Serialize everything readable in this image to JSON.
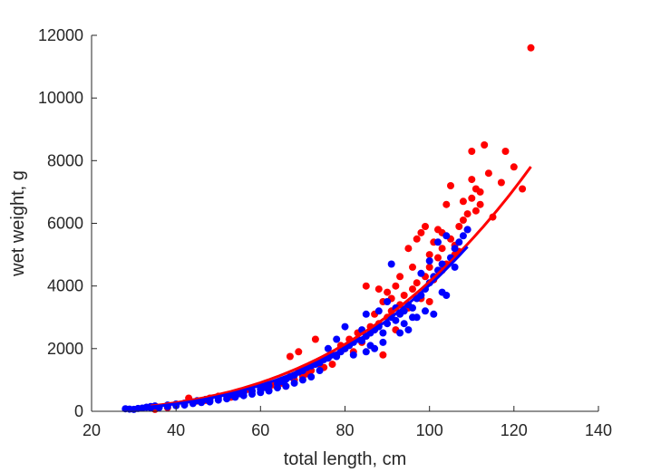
{
  "chart_data": {
    "type": "scatter",
    "title": "",
    "xlabel": "total length, cm",
    "ylabel": "wet weight, g",
    "xlim": [
      20,
      140
    ],
    "ylim": [
      0,
      12000
    ],
    "xticks": [
      "20",
      "40",
      "60",
      "80",
      "100",
      "120",
      "140"
    ],
    "yticks": [
      "0",
      "2000",
      "4000",
      "6000",
      "8000",
      "10000",
      "12000"
    ],
    "grid": false,
    "legend": "none",
    "series": [
      {
        "color": "#ff0000",
        "points": [
          [
            35,
            60
          ],
          [
            38,
            120
          ],
          [
            40,
            200
          ],
          [
            43,
            420
          ],
          [
            45,
            330
          ],
          [
            48,
            420
          ],
          [
            50,
            480
          ],
          [
            53,
            450
          ],
          [
            55,
            600
          ],
          [
            58,
            650
          ],
          [
            60,
            800
          ],
          [
            62,
            750
          ],
          [
            65,
            900
          ],
          [
            66,
            800
          ],
          [
            68,
            1000
          ],
          [
            70,
            1100
          ],
          [
            72,
            1300
          ],
          [
            75,
            1400
          ],
          [
            77,
            1500
          ],
          [
            67,
            1750
          ],
          [
            69,
            1900
          ],
          [
            73,
            2300
          ],
          [
            78,
            1800
          ],
          [
            80,
            2000
          ],
          [
            82,
            1900
          ],
          [
            84,
            2200
          ],
          [
            85,
            2400
          ],
          [
            87,
            2600
          ],
          [
            88,
            2800
          ],
          [
            89,
            1800
          ],
          [
            90,
            3000
          ],
          [
            91,
            3200
          ],
          [
            92,
            2600
          ],
          [
            93,
            3400
          ],
          [
            94,
            3700
          ],
          [
            95,
            3300
          ],
          [
            96,
            3900
          ],
          [
            97,
            4100
          ],
          [
            98,
            3600
          ],
          [
            99,
            4300
          ],
          [
            100,
            4600
          ],
          [
            101,
            4200
          ],
          [
            102,
            4900
          ],
          [
            103,
            5200
          ],
          [
            104,
            4700
          ],
          [
            105,
            5500
          ],
          [
            106,
            5300
          ],
          [
            107,
            5900
          ],
          [
            108,
            6100
          ],
          [
            109,
            5800
          ],
          [
            110,
            6800
          ],
          [
            110,
            7400
          ],
          [
            111,
            7100
          ],
          [
            112,
            6600
          ],
          [
            113,
            8500
          ],
          [
            114,
            7600
          ],
          [
            115,
            6200
          ],
          [
            117,
            7300
          ],
          [
            118,
            8300
          ],
          [
            120,
            7800
          ],
          [
            122,
            7100
          ],
          [
            124,
            11600
          ],
          [
            85,
            4000
          ],
          [
            88,
            3900
          ],
          [
            90,
            3800
          ],
          [
            92,
            4000
          ],
          [
            96,
            4600
          ],
          [
            98,
            5700
          ],
          [
            100,
            5000
          ],
          [
            102,
            5800
          ],
          [
            104,
            6600
          ],
          [
            105,
            7200
          ],
          [
            107,
            5100
          ],
          [
            108,
            6700
          ],
          [
            109,
            6300
          ],
          [
            110,
            8300
          ],
          [
            111,
            6400
          ],
          [
            112,
            7000
          ],
          [
            95,
            5200
          ],
          [
            97,
            5500
          ],
          [
            99,
            5900
          ],
          [
            101,
            5400
          ],
          [
            103,
            5700
          ],
          [
            93,
            4300
          ],
          [
            91,
            3600
          ],
          [
            89,
            3500
          ],
          [
            87,
            3100
          ],
          [
            86,
            2700
          ],
          [
            83,
            2500
          ],
          [
            81,
            2300
          ],
          [
            79,
            2100
          ],
          [
            76,
            1700
          ],
          [
            74,
            1500
          ],
          [
            71,
            1200
          ],
          [
            63,
            850
          ],
          [
            57,
            700
          ],
          [
            52,
            500
          ],
          [
            47,
            350
          ],
          [
            42,
            250
          ],
          [
            100,
            3500
          ],
          [
            103,
            4500
          ],
          [
            106,
            5000
          ]
        ]
      },
      {
        "color": "#0000ff",
        "points": [
          [
            28,
            80
          ],
          [
            30,
            60
          ],
          [
            32,
            100
          ],
          [
            33,
            130
          ],
          [
            34,
            150
          ],
          [
            35,
            170
          ],
          [
            36,
            120
          ],
          [
            38,
            200
          ],
          [
            40,
            230
          ],
          [
            42,
            260
          ],
          [
            44,
            300
          ],
          [
            45,
            340
          ],
          [
            47,
            380
          ],
          [
            48,
            350
          ],
          [
            50,
            420
          ],
          [
            52,
            480
          ],
          [
            53,
            520
          ],
          [
            55,
            560
          ],
          [
            56,
            600
          ],
          [
            58,
            650
          ],
          [
            60,
            700
          ],
          [
            61,
            760
          ],
          [
            62,
            820
          ],
          [
            64,
            880
          ],
          [
            65,
            950
          ],
          [
            66,
            1020
          ],
          [
            67,
            1100
          ],
          [
            68,
            1150
          ],
          [
            69,
            1250
          ],
          [
            70,
            1300
          ],
          [
            71,
            1400
          ],
          [
            72,
            1450
          ],
          [
            73,
            1500
          ],
          [
            74,
            1550
          ],
          [
            75,
            1650
          ],
          [
            76,
            1700
          ],
          [
            77,
            1800
          ],
          [
            78,
            1750
          ],
          [
            79,
            1900
          ],
          [
            80,
            2000
          ],
          [
            81,
            2100
          ],
          [
            82,
            2200
          ],
          [
            83,
            2300
          ],
          [
            84,
            2250
          ],
          [
            85,
            2400
          ],
          [
            86,
            2500
          ],
          [
            87,
            2600
          ],
          [
            88,
            2700
          ],
          [
            89,
            2500
          ],
          [
            90,
            2800
          ],
          [
            91,
            3000
          ],
          [
            92,
            2900
          ],
          [
            93,
            3100
          ],
          [
            94,
            3200
          ],
          [
            95,
            3400
          ],
          [
            96,
            3300
          ],
          [
            97,
            3600
          ],
          [
            98,
            3700
          ],
          [
            99,
            3900
          ],
          [
            100,
            4100
          ],
          [
            101,
            4300
          ],
          [
            102,
            4500
          ],
          [
            103,
            4700
          ],
          [
            104,
            3700
          ],
          [
            105,
            4900
          ],
          [
            106,
            5200
          ],
          [
            107,
            5400
          ],
          [
            108,
            5600
          ],
          [
            109,
            5800
          ],
          [
            85,
            3100
          ],
          [
            88,
            3200
          ],
          [
            90,
            3500
          ],
          [
            91,
            4700
          ],
          [
            92,
            3300
          ],
          [
            94,
            2800
          ],
          [
            96,
            3000
          ],
          [
            98,
            4400
          ],
          [
            100,
            4800
          ],
          [
            102,
            5400
          ],
          [
            104,
            5600
          ],
          [
            106,
            4600
          ],
          [
            84,
            2600
          ],
          [
            86,
            2100
          ],
          [
            82,
            1800
          ],
          [
            80,
            2700
          ],
          [
            78,
            2300
          ],
          [
            76,
            2000
          ],
          [
            74,
            1300
          ],
          [
            72,
            1100
          ],
          [
            70,
            1000
          ],
          [
            68,
            900
          ],
          [
            66,
            800
          ],
          [
            64,
            750
          ],
          [
            62,
            650
          ],
          [
            60,
            600
          ],
          [
            58,
            550
          ],
          [
            56,
            500
          ],
          [
            54,
            450
          ],
          [
            52,
            400
          ],
          [
            50,
            360
          ],
          [
            48,
            300
          ],
          [
            46,
            280
          ],
          [
            44,
            250
          ],
          [
            42,
            200
          ],
          [
            40,
            180
          ],
          [
            38,
            150
          ],
          [
            36,
            130
          ],
          [
            34,
            110
          ],
          [
            31,
            90
          ],
          [
            29,
            70
          ],
          [
            95,
            2600
          ],
          [
            97,
            3000
          ],
          [
            99,
            3200
          ],
          [
            101,
            3100
          ],
          [
            103,
            3800
          ],
          [
            93,
            2500
          ],
          [
            89,
            2200
          ],
          [
            87,
            2000
          ],
          [
            85,
            1900
          ]
        ]
      }
    ],
    "fits": [
      {
        "color": "#ff0000",
        "x_range": [
          34,
          124
        ],
        "coef": 0.00521,
        "power": 2.95
      },
      {
        "color": "#0000ff",
        "x_range": [
          28,
          109
        ],
        "coef": 0.00266,
        "power": 3.09
      }
    ]
  }
}
